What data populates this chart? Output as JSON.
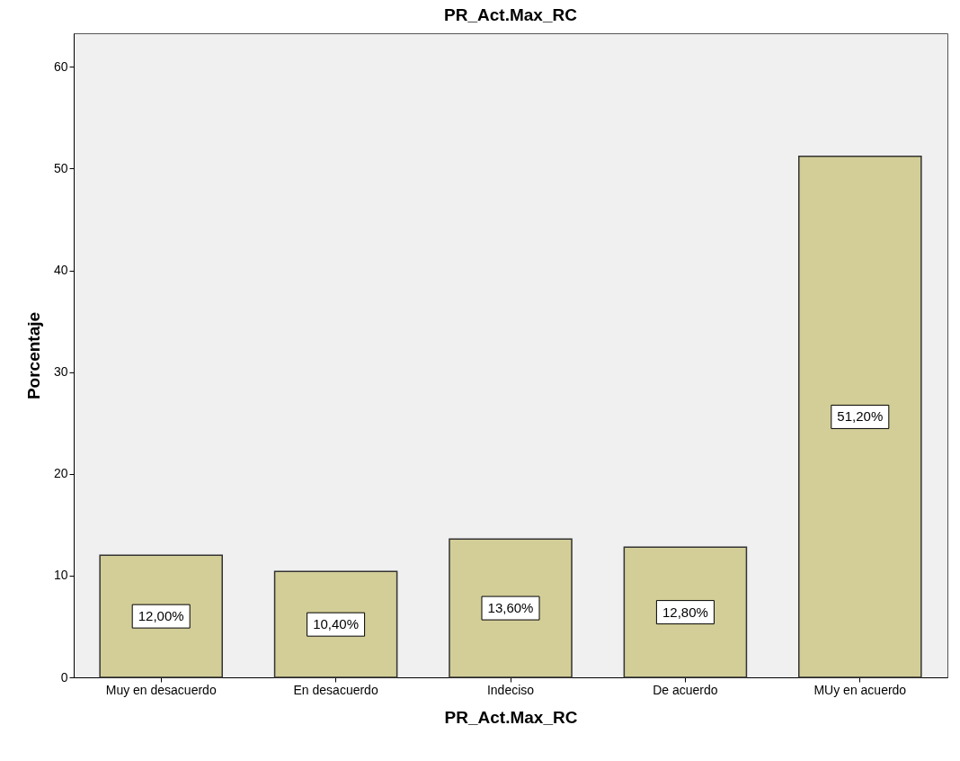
{
  "chart_data": {
    "type": "bar",
    "title": "PR_Act.Max_RC",
    "xlabel": "PR_Act.Max_RC",
    "ylabel": "Porcentaje",
    "categories": [
      "Muy en desacuerdo",
      "En desacuerdo",
      "Indeciso",
      "De acuerdo",
      "MUy en acuerdo"
    ],
    "values": [
      12.0,
      10.4,
      13.6,
      12.8,
      51.2
    ],
    "value_labels": [
      "12,00%",
      "10,40%",
      "13,60%",
      "12,80%",
      "51,20%"
    ],
    "color": "#d3ce97",
    "ylim": [
      0,
      63.3
    ],
    "yticks": [
      0,
      10,
      20,
      30,
      40,
      50,
      60
    ],
    "grid": false
  }
}
